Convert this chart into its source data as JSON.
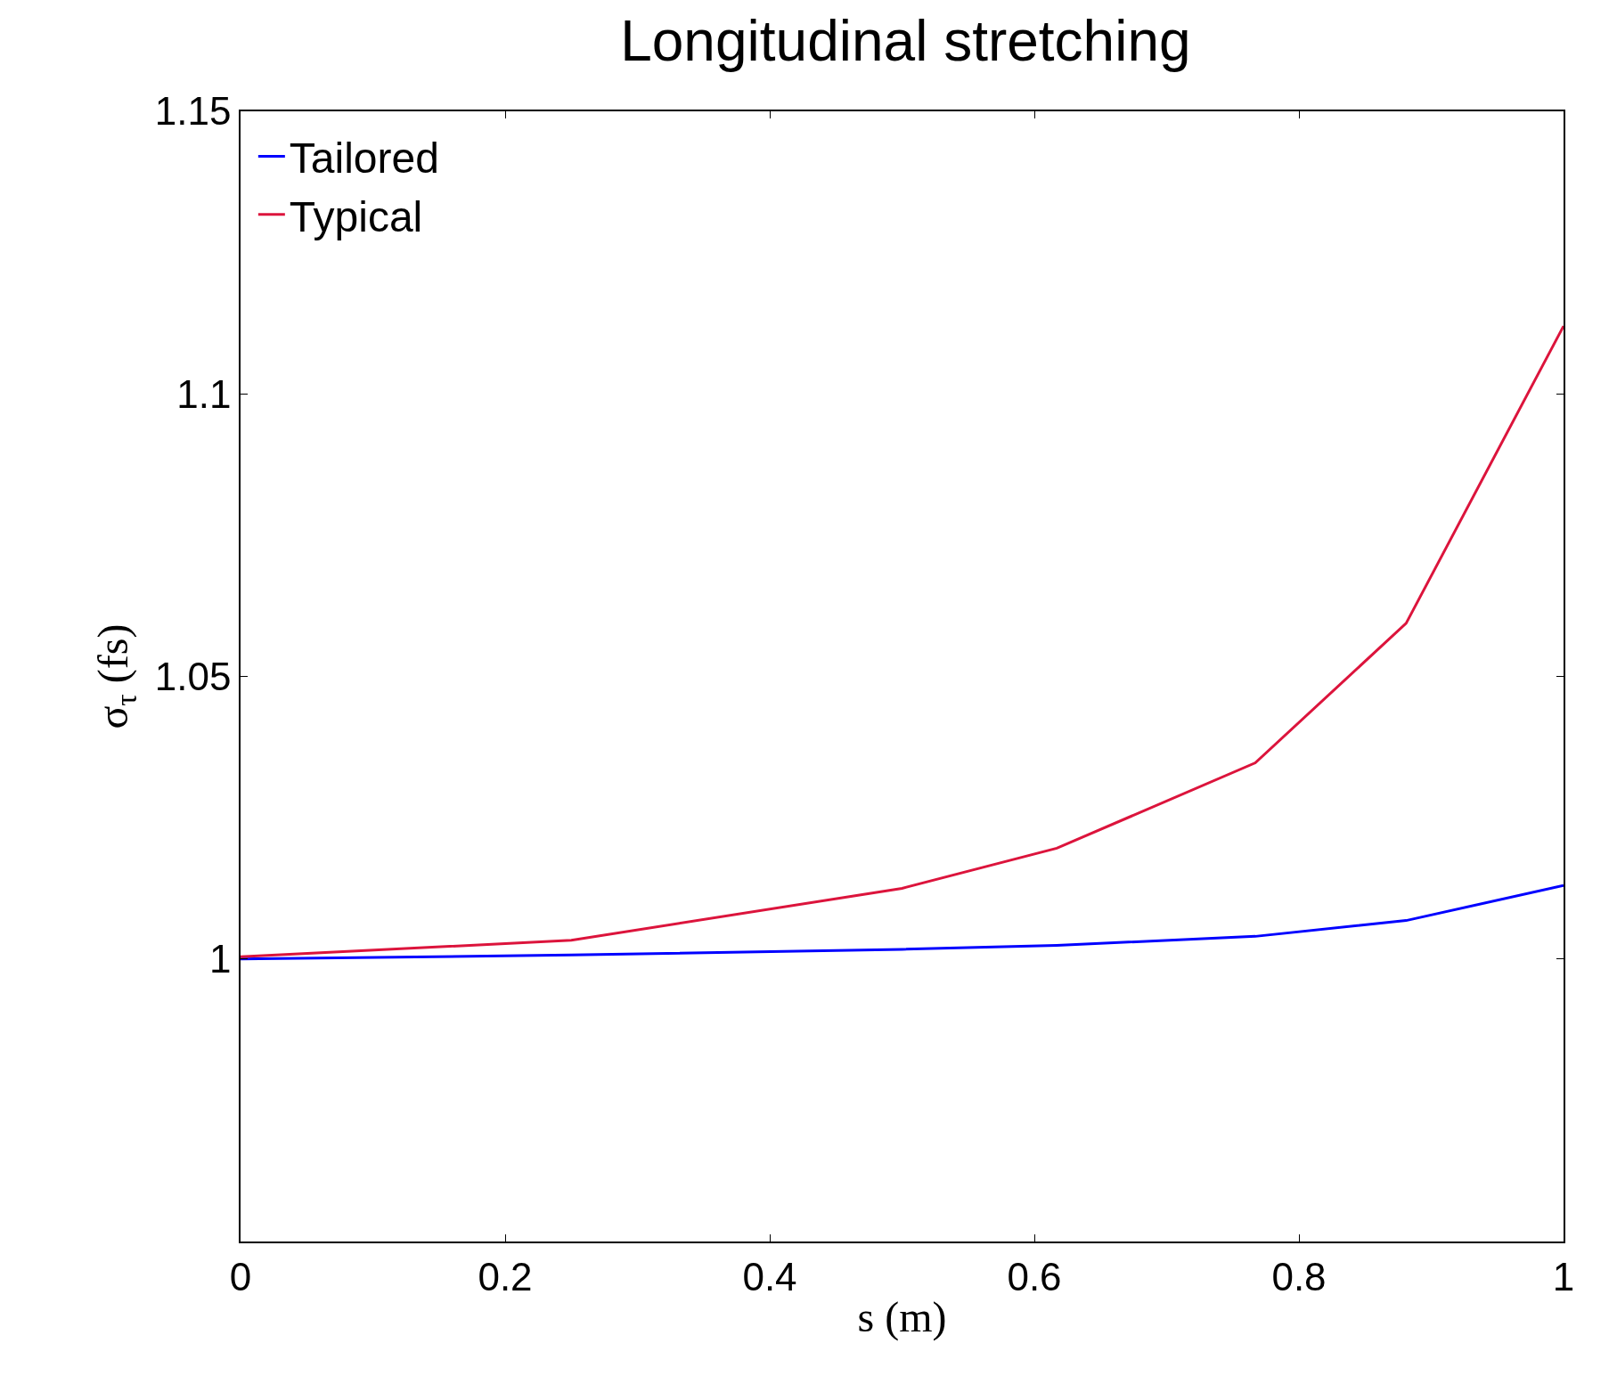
{
  "chart_data": {
    "type": "line",
    "title": "Longitudinal stretching",
    "xlabel": "s (m)",
    "ylabel": "σ$_{τ}$ (fs)",
    "x": [
      0,
      0.25,
      0.5,
      0.617,
      0.767,
      0.881,
      1
    ],
    "series": [
      {
        "name": "Tailored",
        "color": "#0000ff",
        "values": [
          1.0,
          1.0007,
          1.0017,
          1.0024,
          1.004,
          1.0068,
          1.013
        ]
      },
      {
        "name": "Typical",
        "color": "#dc143c",
        "values": [
          1.0004,
          1.0033,
          1.0125,
          1.0196,
          1.0347,
          1.0594,
          1.112
        ]
      }
    ],
    "xlim": [
      0,
      1
    ],
    "xticks": [
      0,
      0.2,
      0.4,
      0.6,
      0.8,
      1
    ],
    "ylim": [
      0.95,
      1.15
    ],
    "yticks": [
      1,
      1.05,
      1.1,
      1.15
    ],
    "legend": "top left",
    "marker": "none",
    "line_style": "solid"
  }
}
